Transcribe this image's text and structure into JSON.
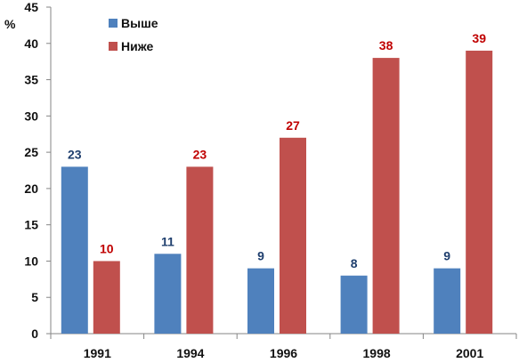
{
  "chart_data": {
    "type": "bar",
    "title": "",
    "xlabel": "",
    "ylabel": "%",
    "ylim": [
      0,
      45
    ],
    "yticks": [
      0,
      5,
      10,
      15,
      20,
      25,
      30,
      35,
      40,
      45
    ],
    "grid": false,
    "legend_position": "top-left",
    "categories": [
      "1991",
      "1994",
      "1996",
      "1998",
      "2001"
    ],
    "series": [
      {
        "name": "Выше",
        "values": [
          23,
          11,
          9,
          8,
          9
        ],
        "color": "#4f81bd",
        "label_color": "#1f3f6e"
      },
      {
        "name": "Ниже",
        "values": [
          10,
          23,
          27,
          38,
          39
        ],
        "color": "#c0504d",
        "label_color": "#c00000"
      }
    ]
  }
}
